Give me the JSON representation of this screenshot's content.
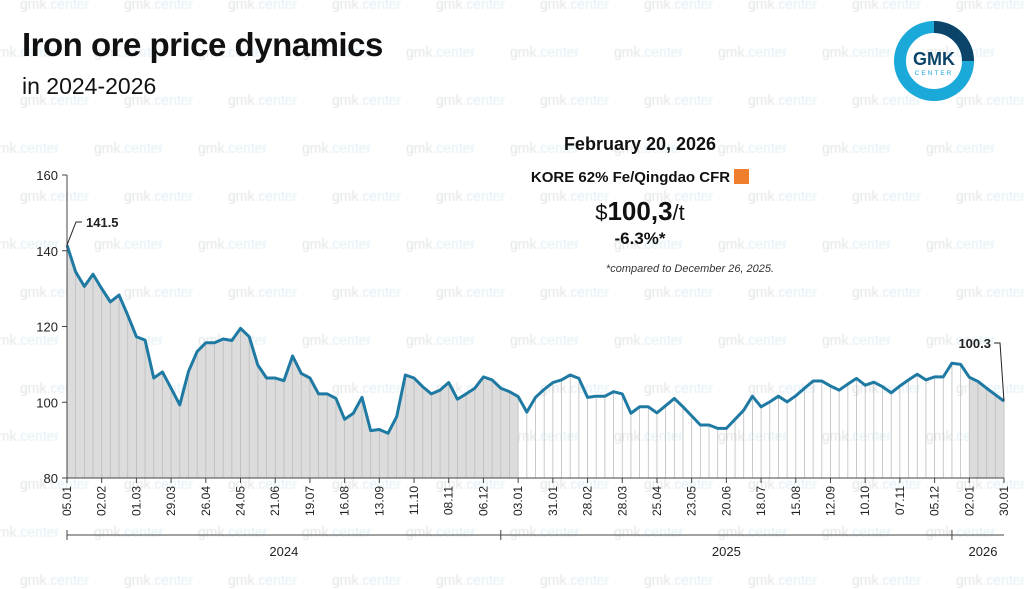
{
  "header": {
    "title": "Iron ore price dynamics",
    "subtitle": "in 2024-2026"
  },
  "logo": {
    "text": "GMK",
    "subtext": "CENTER",
    "colors": {
      "ring": "#1aa9d8",
      "segment": "#0b4468",
      "text": "#0b4468"
    }
  },
  "watermark": {
    "prefix": "gmk",
    "suffix": ".center"
  },
  "info": {
    "date": "February 20, 2026",
    "series": "KORE 62% Fe/Qingdao CFR",
    "currency": "$",
    "price": "100,3",
    "unit": "/t",
    "change": "-6.3%*",
    "note": "*compared to December 26, 2025.",
    "marker_color": "#f07f2d"
  },
  "chart_data": {
    "type": "area",
    "line_color": "#1f7aa3",
    "ylim": [
      80,
      160
    ],
    "yticks": [
      80,
      100,
      120,
      140,
      160
    ],
    "xticks": [
      "05.01",
      "02.02",
      "01.03",
      "29.03",
      "26.04",
      "24.05",
      "21.06",
      "19.07",
      "16.08",
      "13.09",
      "11.10",
      "08.11",
      "06.12",
      "03.01",
      "31.01",
      "28.02",
      "28.03",
      "25.04",
      "23.05",
      "20.06",
      "18.07",
      "15.08",
      "12.09",
      "10.10",
      "07.11",
      "05.12",
      "02.01",
      "30.01"
    ],
    "years": [
      "2024",
      "2025",
      "2026"
    ],
    "annotations": {
      "first": "141.5",
      "last": "100.3"
    },
    "values": [
      141.5,
      134.4,
      130.6,
      133.8,
      130,
      126.5,
      128.3,
      123,
      117.3,
      116.4,
      106.4,
      108,
      103.7,
      99.3,
      108.1,
      113.4,
      115.7,
      115.7,
      116.7,
      116.3,
      119.5,
      117.3,
      109.8,
      106.4,
      106.4,
      105.7,
      112.2,
      107.6,
      106.4,
      102.2,
      102.2,
      101,
      95.5,
      97.1,
      101.3,
      92.5,
      92.8,
      91.8,
      96.2,
      107.2,
      106.4,
      104.1,
      102.2,
      103.2,
      105.2,
      100.8,
      102.2,
      103.7,
      106.7,
      105.9,
      103.7,
      102.8,
      101.5,
      97.4,
      101.3,
      103.4,
      105.2,
      105.9,
      107.2,
      106.3,
      101.3,
      101.6,
      101.6,
      102.8,
      102.2,
      97.1,
      98.8,
      98.8,
      97.2,
      99.1,
      101,
      98.8,
      96.4,
      94,
      94,
      93.1,
      93.1,
      95.5,
      97.9,
      101.6,
      98.8,
      100.1,
      101.6,
      100.1,
      101.7,
      103.7,
      105.6,
      105.6,
      104.3,
      103.2,
      104.8,
      106.3,
      104.5,
      105.3,
      104.1,
      102.5,
      104.3,
      105.9,
      107.4,
      105.9,
      106.7,
      106.7,
      110.3,
      110,
      106.6,
      105.5,
      103.7,
      102,
      100.3
    ]
  }
}
